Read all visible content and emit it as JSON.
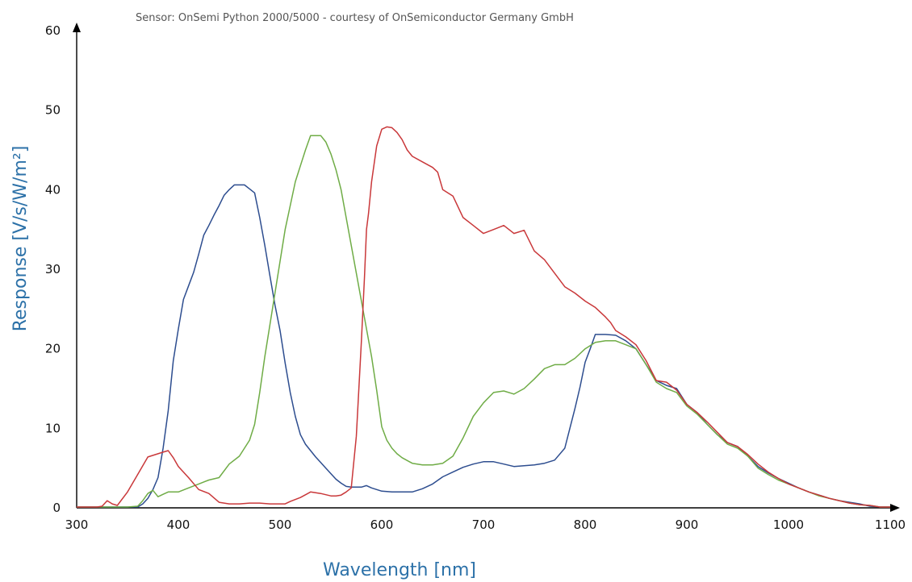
{
  "chart_data": {
    "type": "line",
    "subtitle": "Sensor: OnSemi Python 2000/5000 - courtesy of OnSemiconductor Germany GmbH",
    "xlabel": "Wavelength [nm]",
    "ylabel": "Response [V/s/W/m²]",
    "xlim": [
      300,
      1100
    ],
    "ylim": [
      0,
      60
    ],
    "xticks": [
      300,
      400,
      500,
      600,
      700,
      800,
      900,
      1000,
      1100
    ],
    "yticks": [
      0,
      10,
      20,
      30,
      40,
      50,
      60
    ],
    "grid": false,
    "legend": "none",
    "series": [
      {
        "color": "#2d4d8f",
        "x": [
          300,
          310,
          320,
          330,
          340,
          350,
          360,
          365,
          370,
          375,
          380,
          385,
          390,
          395,
          400,
          405,
          410,
          415,
          420,
          425,
          430,
          435,
          440,
          445,
          450,
          455,
          460,
          465,
          470,
          475,
          480,
          485,
          490,
          495,
          500,
          505,
          510,
          515,
          520,
          525,
          530,
          535,
          540,
          545,
          550,
          555,
          560,
          565,
          570,
          575,
          580,
          585,
          590,
          595,
          600,
          610,
          620,
          630,
          640,
          650,
          660,
          670,
          680,
          690,
          700,
          710,
          720,
          730,
          740,
          750,
          760,
          770,
          780,
          785,
          790,
          795,
          800,
          805,
          810,
          815,
          820,
          830,
          840,
          850,
          860,
          870,
          880,
          890,
          900,
          910,
          920,
          930,
          940,
          950,
          960,
          970,
          980,
          990,
          1000,
          1010,
          1020,
          1030,
          1040,
          1050,
          1060,
          1070,
          1080,
          1090,
          1100
        ],
        "values": [
          0.1,
          0.1,
          0.1,
          0.1,
          0.1,
          0.1,
          0.1,
          0.5,
          1.2,
          2.3,
          3.8,
          7.5,
          12.2,
          18.5,
          22.5,
          26.2,
          27.9,
          29.6,
          31.9,
          34.3,
          35.5,
          36.8,
          38.0,
          39.3,
          40.0,
          40.6,
          40.6,
          40.6,
          40.1,
          39.6,
          36.5,
          33.0,
          29.2,
          25.5,
          22.3,
          18.2,
          14.5,
          11.5,
          9.2,
          8.0,
          7.2,
          6.4,
          5.7,
          5.0,
          4.3,
          3.6,
          3.1,
          2.7,
          2.6,
          2.6,
          2.6,
          2.8,
          2.5,
          2.3,
          2.1,
          2.0,
          2.0,
          2.0,
          2.4,
          3.0,
          3.9,
          4.5,
          5.1,
          5.5,
          5.8,
          5.8,
          5.5,
          5.2,
          5.3,
          5.4,
          5.6,
          6.0,
          7.5,
          10.0,
          12.5,
          15.2,
          18.3,
          20.0,
          21.8,
          21.8,
          21.8,
          21.7,
          21.0,
          20.0,
          18.0,
          16.0,
          15.4,
          15.0,
          13.0,
          12.0,
          10.5,
          9.2,
          8.2,
          7.7,
          6.5,
          5.2,
          4.4,
          3.7,
          3.1,
          2.5,
          2.0,
          1.6,
          1.2,
          0.9,
          0.7,
          0.5,
          0.2,
          0.1,
          0.1
        ]
      },
      {
        "color": "#6fac46",
        "x": [
          300,
          310,
          320,
          330,
          340,
          350,
          360,
          365,
          370,
          375,
          380,
          385,
          390,
          400,
          410,
          420,
          430,
          440,
          450,
          460,
          470,
          475,
          480,
          485,
          490,
          495,
          500,
          505,
          510,
          515,
          520,
          525,
          530,
          535,
          540,
          545,
          550,
          555,
          560,
          565,
          570,
          575,
          580,
          585,
          590,
          595,
          600,
          605,
          610,
          615,
          620,
          630,
          640,
          650,
          660,
          670,
          680,
          690,
          700,
          710,
          720,
          730,
          740,
          750,
          760,
          770,
          780,
          790,
          800,
          810,
          820,
          830,
          840,
          850,
          860,
          870,
          880,
          890,
          900,
          910,
          920,
          930,
          940,
          950,
          960,
          970,
          980,
          990,
          1000,
          1010,
          1020,
          1030,
          1040,
          1050,
          1060,
          1070,
          1080,
          1090,
          1100
        ],
        "values": [
          0.1,
          0.1,
          0.1,
          0.1,
          0.1,
          0.1,
          0.2,
          0.9,
          1.8,
          2.2,
          1.4,
          1.7,
          2.0,
          2.0,
          2.5,
          3.0,
          3.5,
          3.8,
          5.5,
          6.5,
          8.5,
          10.5,
          14.5,
          19.0,
          23.0,
          27.0,
          31.0,
          35.0,
          38.0,
          41.0,
          43.0,
          45.0,
          46.8,
          46.8,
          46.8,
          46.0,
          44.5,
          42.5,
          40.0,
          36.5,
          33.0,
          29.5,
          26.0,
          22.5,
          19.0,
          14.8,
          10.2,
          8.5,
          7.5,
          6.8,
          6.3,
          5.6,
          5.4,
          5.4,
          5.6,
          6.5,
          8.8,
          11.5,
          13.2,
          14.5,
          14.7,
          14.3,
          15.0,
          16.2,
          17.5,
          18.0,
          18.0,
          18.8,
          20.0,
          20.8,
          21.0,
          21.0,
          20.5,
          20.0,
          18.0,
          15.8,
          15.0,
          14.5,
          12.8,
          11.8,
          10.5,
          9.2,
          8.0,
          7.5,
          6.5,
          5.0,
          4.2,
          3.5,
          3.0,
          2.5,
          2.0,
          1.5,
          1.2,
          0.9,
          0.6,
          0.4,
          0.3,
          0.1,
          0.1
        ]
      },
      {
        "color": "#c9383a",
        "x": [
          300,
          310,
          320,
          325,
          330,
          335,
          340,
          350,
          360,
          370,
          380,
          385,
          390,
          395,
          400,
          410,
          420,
          430,
          440,
          450,
          460,
          470,
          480,
          490,
          500,
          505,
          510,
          520,
          530,
          540,
          550,
          555,
          560,
          565,
          570,
          575,
          580,
          583,
          585,
          587,
          590,
          595,
          600,
          605,
          610,
          615,
          620,
          625,
          630,
          640,
          650,
          655,
          660,
          670,
          680,
          690,
          700,
          710,
          720,
          730,
          740,
          750,
          760,
          770,
          780,
          790,
          800,
          810,
          820,
          825,
          830,
          840,
          850,
          860,
          870,
          880,
          890,
          900,
          910,
          920,
          930,
          940,
          950,
          960,
          970,
          980,
          990,
          1000,
          1010,
          1020,
          1030,
          1040,
          1050,
          1060,
          1070,
          1080,
          1090,
          1100
        ],
        "values": [
          0.1,
          0.1,
          0.1,
          0.2,
          0.9,
          0.5,
          0.3,
          2.0,
          4.2,
          6.4,
          6.8,
          7.0,
          7.2,
          6.3,
          5.2,
          3.8,
          2.3,
          1.8,
          0.7,
          0.5,
          0.5,
          0.6,
          0.6,
          0.5,
          0.5,
          0.5,
          0.8,
          1.3,
          2.0,
          1.8,
          1.5,
          1.5,
          1.6,
          2.0,
          2.5,
          9.0,
          21.0,
          29.0,
          35.0,
          37.0,
          41.0,
          45.5,
          47.6,
          47.9,
          47.8,
          47.2,
          46.3,
          45.0,
          44.2,
          43.5,
          42.8,
          42.2,
          40.0,
          39.2,
          36.5,
          35.5,
          34.5,
          35.0,
          35.5,
          34.5,
          34.9,
          32.3,
          31.2,
          29.5,
          27.8,
          27.0,
          26.0,
          25.2,
          24.0,
          23.3,
          22.3,
          21.5,
          20.5,
          18.5,
          16.0,
          15.8,
          14.8,
          13.0,
          12.0,
          10.8,
          9.5,
          8.2,
          7.7,
          6.7,
          5.5,
          4.5,
          3.7,
          3.0,
          2.5,
          2.0,
          1.6,
          1.2,
          0.9,
          0.6,
          0.4,
          0.3,
          0.1,
          0.1
        ]
      }
    ]
  }
}
